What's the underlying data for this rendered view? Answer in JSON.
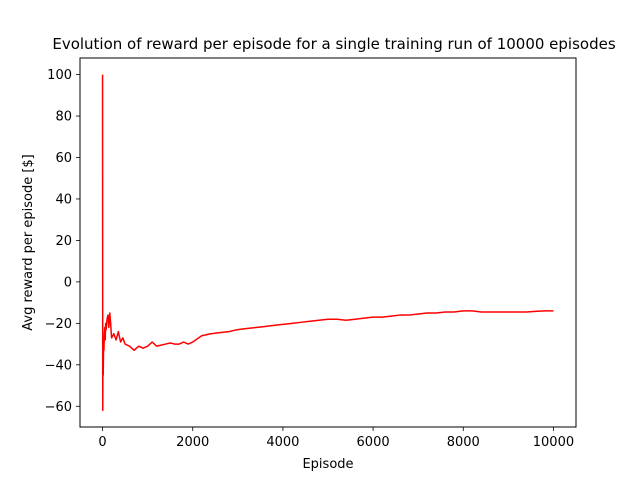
{
  "chart_data": {
    "type": "line",
    "title": "Evolution of reward per episode for a single training run of 10000 episodes",
    "xlabel": "Episode",
    "ylabel": "Avg reward per episode [$]",
    "xlim": [
      -500,
      10500
    ],
    "ylim": [
      -70,
      108
    ],
    "xticks": [
      0,
      2000,
      4000,
      6000,
      8000,
      10000
    ],
    "yticks": [
      -60,
      -40,
      -20,
      0,
      20,
      40,
      60,
      80,
      100
    ],
    "grid": false,
    "legend": "none",
    "series": [
      {
        "color": "#ff0000",
        "x": [
          0,
          2,
          5,
          10,
          15,
          20,
          25,
          30,
          40,
          50,
          60,
          70,
          80,
          100,
          120,
          140,
          160,
          180,
          200,
          250,
          300,
          350,
          400,
          450,
          500,
          600,
          700,
          800,
          900,
          1000,
          1100,
          1200,
          1300,
          1400,
          1500,
          1600,
          1700,
          1800,
          1900,
          2000,
          2200,
          2400,
          2600,
          2800,
          3000,
          3200,
          3400,
          3600,
          3800,
          4000,
          4200,
          4400,
          4600,
          4800,
          5000,
          5200,
          5400,
          5600,
          5800,
          6000,
          6200,
          6400,
          6600,
          6800,
          7000,
          7200,
          7400,
          7600,
          7800,
          8000,
          8200,
          8400,
          8600,
          8800,
          9000,
          9200,
          9400,
          9600,
          9800,
          10000
        ],
        "y": [
          100,
          20,
          -62,
          -30,
          -45,
          -35,
          -28,
          -33,
          -25,
          -22,
          -28,
          -20,
          -23,
          -18,
          -16,
          -22,
          -15,
          -20,
          -27,
          -25,
          -28,
          -24,
          -29,
          -27,
          -30,
          -31,
          -33,
          -31,
          -32,
          -31,
          -29,
          -31,
          -30.5,
          -30,
          -29.5,
          -30,
          -30,
          -29,
          -30,
          -29,
          -26,
          -25,
          -24.5,
          -24,
          -23,
          -22.5,
          -22,
          -21.5,
          -21,
          -20.5,
          -20,
          -19.5,
          -19,
          -18.5,
          -18,
          -18,
          -18.5,
          -18,
          -17.5,
          -17,
          -17,
          -16.5,
          -16,
          -16,
          -15.5,
          -15,
          -15,
          -14.5,
          -14.5,
          -14,
          -14,
          -14.5,
          -14.5,
          -14.5,
          -14.5,
          -14.5,
          -14.5,
          -14.2,
          -14,
          -14
        ]
      }
    ]
  }
}
